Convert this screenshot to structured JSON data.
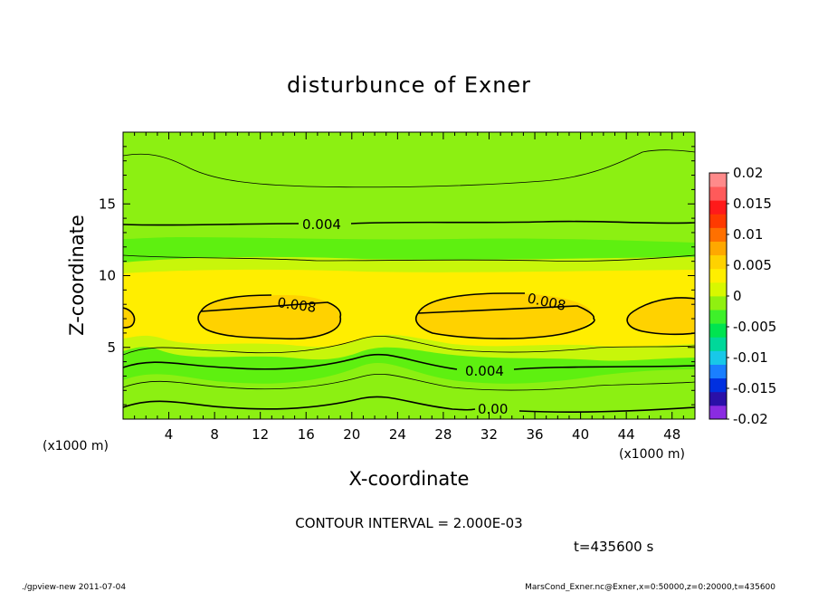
{
  "chart_data": {
    "type": "heatmap",
    "title": "disturbunce of Exner",
    "xlabel": "X-coordinate",
    "ylabel": "Z-coordinate",
    "x_unit_left": "(x1000 m)",
    "x_unit_right": "(x1000 m)",
    "xlim": [
      0,
      50
    ],
    "ylim": [
      0,
      20
    ],
    "x_ticks": [
      4,
      8,
      12,
      16,
      20,
      24,
      28,
      32,
      36,
      40,
      44,
      48
    ],
    "y_ticks": [
      5,
      10,
      15
    ],
    "colorbar": {
      "ticks": [
        "0.02",
        "0.015",
        "0.01",
        "0.005",
        "0",
        "-0.005",
        "-0.01",
        "-0.015",
        "-0.02"
      ],
      "range": [
        -0.02,
        0.02
      ],
      "colors": [
        "#8a2be2",
        "#2a10a8",
        "#0030e0",
        "#1a7fff",
        "#18c8e8",
        "#00d89a",
        "#00e450",
        "#3ef02a",
        "#90f010",
        "#d8f800",
        "#ffee00",
        "#ffd200",
        "#ffa800",
        "#ff7000",
        "#ff3a00",
        "#ff1a1a",
        "#ff5a5a",
        "#ff8a8a"
      ]
    },
    "contour_labels": [
      {
        "text": "0.004",
        "x": 18,
        "z": 13.5
      },
      {
        "text": "0.008",
        "x": 15.5,
        "z": 8.1
      },
      {
        "text": "0.008",
        "x": 38.5,
        "z": 8.0
      },
      {
        "text": "0.004",
        "x": 32,
        "z": 3.1
      },
      {
        "text": "0.00",
        "x": 32.5,
        "z": 0.7
      }
    ],
    "contour_interval": "CONTOUR INTERVAL = 2.000E-03",
    "time_label": "t=435600 s"
  },
  "footer": {
    "left": "./gpview-new   2011-07-04",
    "right": "MarsCond_Exner.nc@Exner,x=0:50000,z=0:20000,t=435600"
  }
}
